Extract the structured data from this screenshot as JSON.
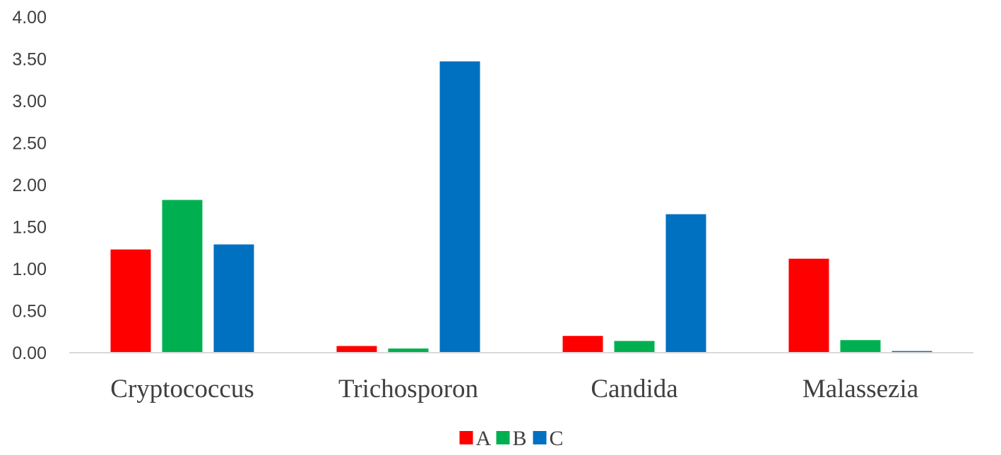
{
  "chart_data": {
    "type": "bar",
    "title": "",
    "xlabel": "",
    "ylabel": "",
    "categories": [
      "Cryptococcus",
      "Trichosporon",
      "Candida",
      "Malassezia"
    ],
    "series": [
      {
        "name": "A",
        "color": "#FF0000",
        "values": [
          1.23,
          0.08,
          0.2,
          1.12
        ]
      },
      {
        "name": "B",
        "color": "#00B050",
        "values": [
          1.82,
          0.05,
          0.14,
          0.15
        ]
      },
      {
        "name": "C",
        "color": "#0070C0",
        "values": [
          1.29,
          3.47,
          1.65,
          0.02
        ]
      }
    ],
    "ylim": [
      0,
      4
    ],
    "yticks": [
      "0.00",
      "0.50",
      "1.00",
      "1.50",
      "2.00",
      "2.50",
      "3.00",
      "3.50",
      "4.00"
    ],
    "grid": false,
    "legend_position": "bottom"
  }
}
